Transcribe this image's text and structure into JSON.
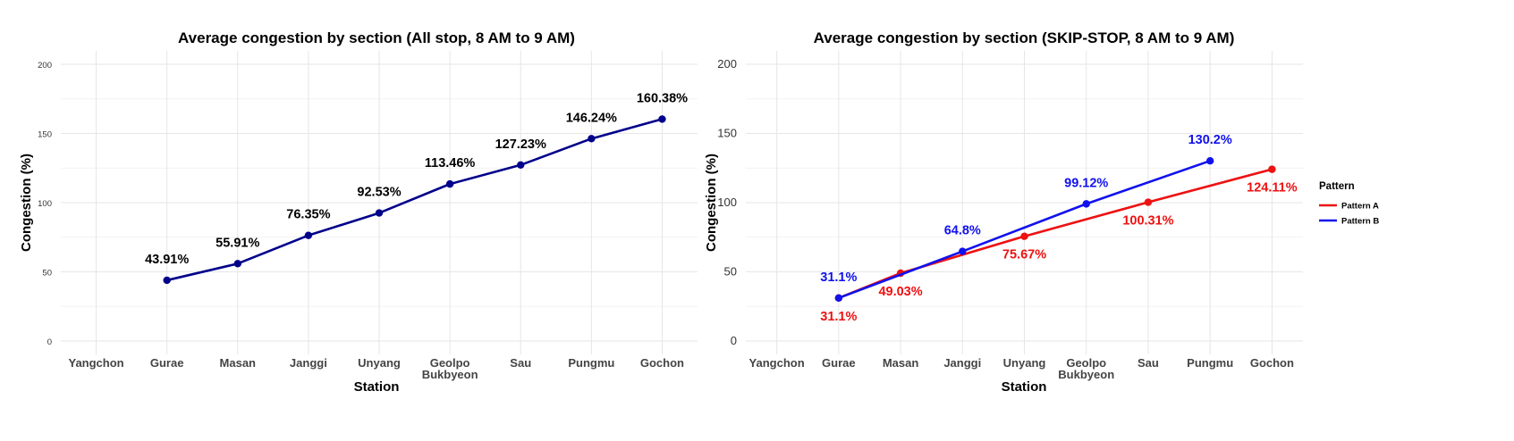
{
  "colors": {
    "all_stop": "#00008B",
    "pattern_a": "#EE1111",
    "pattern_b": "#1111EE"
  },
  "chart_data": [
    {
      "type": "line",
      "title": "Average congestion by section (All stop, 8 AM to 9 AM)",
      "xlabel": "Station",
      "ylabel": "Congestion (%)",
      "categories": [
        "Yangchon",
        "Gurae",
        "Masan",
        "Janggi",
        "Unyang",
        "Geolpo Bukbyeon",
        "Sau",
        "Pungmu",
        "Gochon"
      ],
      "ylim": [
        0,
        200
      ],
      "yticks": [
        0,
        50,
        100,
        150,
        200
      ],
      "grid": true,
      "series": [
        {
          "x": [
            "Gurae",
            "Masan",
            "Janggi",
            "Unyang",
            "Geolpo Bukbyeon",
            "Sau",
            "Pungmu",
            "Gochon"
          ],
          "values": [
            43.91,
            55.91,
            76.35,
            92.53,
            113.46,
            127.23,
            146.24,
            160.38
          ],
          "labels": [
            "43.91%",
            "55.91%",
            "76.35%",
            "92.53%",
            "113.46%",
            "127.23%",
            "146.24%",
            "160.38%"
          ],
          "color": "#00008B"
        }
      ]
    },
    {
      "type": "line",
      "title": "Average congestion by section (SKIP-STOP, 8 AM to 9 AM)",
      "xlabel": "Station",
      "ylabel": "Congestion (%)",
      "categories": [
        "Yangchon",
        "Gurae",
        "Masan",
        "Janggi",
        "Unyang",
        "Geolpo Bukbyeon",
        "Sau",
        "Pungmu",
        "Gochon"
      ],
      "ylim": [
        0,
        200
      ],
      "yticks": [
        0,
        50,
        100,
        150,
        200
      ],
      "grid": true,
      "legend": {
        "title": "Pattern",
        "position": "right"
      },
      "series": [
        {
          "name": "Pattern A",
          "x": [
            "Gurae",
            "Masan",
            "Unyang",
            "Sau",
            "Gochon"
          ],
          "values": [
            31.1,
            49.03,
            75.67,
            100.31,
            124.11
          ],
          "labels": [
            "31.1%",
            "49.03%",
            "75.67%",
            "100.31%",
            "124.11%"
          ],
          "color": "#EE1111"
        },
        {
          "name": "Pattern B",
          "x": [
            "Gurae",
            "Janggi",
            "Geolpo Bukbyeon",
            "Pungmu"
          ],
          "values": [
            31.1,
            64.8,
            99.12,
            130.2
          ],
          "labels": [
            "31.1%",
            "64.8%",
            "99.12%",
            "130.2%"
          ],
          "color": "#1111EE"
        }
      ]
    }
  ]
}
